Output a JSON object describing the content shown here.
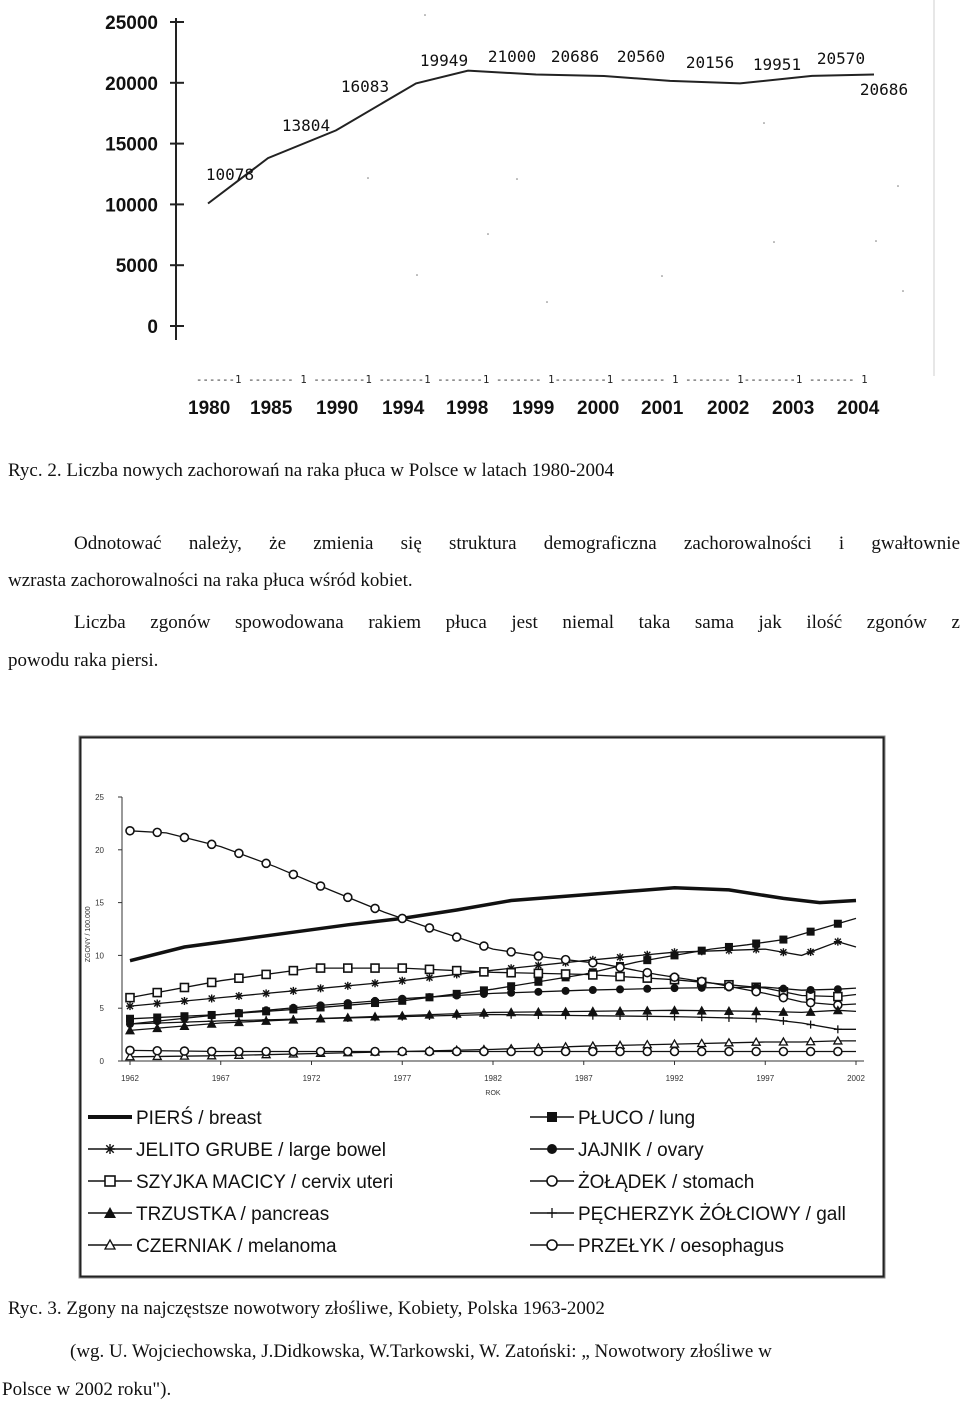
{
  "chart_data": [
    {
      "type": "line",
      "title": "",
      "categories": [
        "1980",
        "1985",
        "1990",
        "1994",
        "1998",
        "1999",
        "2000",
        "2001",
        "2002",
        "2003",
        "2004"
      ],
      "values": [
        10078,
        13804,
        16083,
        19949,
        21000,
        20686,
        20560,
        20156,
        19951,
        20570,
        20686
      ],
      "data_labels": [
        "10078",
        "13804",
        "16083",
        "19949",
        "21000",
        "20686",
        "20560",
        "20156",
        "19951",
        "20570",
        "20686"
      ],
      "yticks": [
        "25000",
        "20000",
        "15000",
        "10000",
        "5000",
        "0"
      ],
      "ylim": [
        0,
        25000
      ],
      "dash_axis_text": "------1 ------- 1 --------1 -------1 -------1 ------- 1--------1 ------- 1 ------- 1--------1 ------- 1"
    },
    {
      "type": "line",
      "xlabel": "ROK",
      "ylabel": "ZGONY / 100.000",
      "ylim": [
        0,
        25
      ],
      "yticks": [
        "25",
        "20",
        "15",
        "10",
        "5",
        "0"
      ],
      "xticks": [
        "1962",
        "1967",
        "1972",
        "1977",
        "1982",
        "1987",
        "1992",
        "1997",
        "2002"
      ],
      "legend": [
        {
          "label": "PIERŚ / breast",
          "marker": "none"
        },
        {
          "label": "JELITO GRUBE / large bowel",
          "marker": "star"
        },
        {
          "label": "SZYJKA MACICY / cervix uteri",
          "marker": "square-open"
        },
        {
          "label": "TRZUSTKA / pancreas",
          "marker": "triangle-filled"
        },
        {
          "label": "CZERNIAK / melanoma",
          "marker": "triangle-open"
        },
        {
          "label": "PŁUCO / lung",
          "marker": "square-filled"
        },
        {
          "label": "JAJNIK / ovary",
          "marker": "circle-filled"
        },
        {
          "label": "ŻOŁĄDEK / stomach",
          "marker": "circle-open"
        },
        {
          "label": "PĘCHERZYK ŻÓŁCIOWY / gall",
          "marker": "plus"
        },
        {
          "label": "PRZEŁYK / oesophagus",
          "marker": "circle-open"
        }
      ],
      "series": [
        {
          "name": "PIERŚ / breast",
          "marker": "none",
          "years": [
            1962,
            1965,
            1968,
            1971,
            1974,
            1977,
            1980,
            1983,
            1986,
            1989,
            1992,
            1995,
            1998,
            2000,
            2002
          ],
          "values": [
            9.5,
            10.8,
            11.5,
            12.2,
            12.9,
            13.5,
            14.3,
            15.2,
            15.6,
            16.0,
            16.4,
            16.2,
            15.4,
            15.0,
            15.2
          ]
        },
        {
          "name": "PŁUCO / lung",
          "marker": "square-filled",
          "years": [
            1962,
            1967,
            1972,
            1977,
            1982,
            1987,
            1990,
            1992,
            1994,
            1996,
            1998,
            2000,
            2002
          ],
          "values": [
            4.0,
            4.4,
            5.0,
            5.7,
            6.8,
            8.2,
            9.4,
            10.0,
            10.6,
            11.0,
            11.5,
            12.5,
            13.5
          ]
        },
        {
          "name": "JELITO GRUBE / large bowel",
          "marker": "star",
          "years": [
            1962,
            1967,
            1972,
            1977,
            1982,
            1987,
            1992,
            1997,
            1999,
            2001,
            2002
          ],
          "values": [
            5.2,
            6.0,
            6.8,
            7.6,
            8.6,
            9.5,
            10.3,
            10.6,
            10.0,
            11.3,
            10.8
          ]
        },
        {
          "name": "SZYJKA MACICY / cervix uteri",
          "marker": "square-open",
          "years": [
            1962,
            1967,
            1972,
            1977,
            1982,
            1987,
            1992,
            1997,
            1999,
            2001,
            2002
          ],
          "values": [
            6.0,
            7.6,
            8.8,
            8.8,
            8.4,
            8.2,
            7.7,
            6.9,
            6.2,
            6.1,
            6.3
          ]
        },
        {
          "name": "JAJNIK / ovary",
          "marker": "circle-filled",
          "years": [
            1962,
            1967,
            1972,
            1977,
            1982,
            1987,
            1992,
            1997,
            1999,
            2001,
            2002
          ],
          "values": [
            3.5,
            4.4,
            5.2,
            5.9,
            6.4,
            6.7,
            6.9,
            7.0,
            6.7,
            6.8,
            6.9
          ]
        },
        {
          "name": "ŻOŁĄDEK / stomach",
          "marker": "circle-open",
          "years": [
            1962,
            1964,
            1967,
            1970,
            1973,
            1976,
            1979,
            1982,
            1985,
            1988,
            1991,
            1994,
            1997,
            1999,
            2001,
            2002
          ],
          "values": [
            21.8,
            21.6,
            20.3,
            18.4,
            16.2,
            14.1,
            12.3,
            10.6,
            9.8,
            9.2,
            8.2,
            7.4,
            6.4,
            5.6,
            5.3,
            5.4
          ]
        },
        {
          "name": "TRZUSTKA / pancreas",
          "marker": "triangle-filled",
          "years": [
            1962,
            1967,
            1972,
            1977,
            1982,
            1987,
            1992,
            1997,
            1999,
            2001,
            2002
          ],
          "values": [
            2.9,
            3.6,
            4.0,
            4.3,
            4.6,
            4.7,
            4.8,
            4.7,
            4.6,
            4.8,
            4.7
          ]
        },
        {
          "name": "PĘCHERZYK ŻÓŁCIOWY / gall",
          "marker": "plus",
          "years": [
            1962,
            1967,
            1972,
            1977,
            1982,
            1987,
            1992,
            1997,
            1999,
            2001,
            2002
          ],
          "values": [
            3.5,
            3.8,
            4.0,
            4.2,
            4.4,
            4.3,
            4.2,
            4.0,
            3.6,
            3.0,
            3.0
          ]
        },
        {
          "name": "CZERNIAK / melanoma",
          "marker": "triangle-open",
          "years": [
            1962,
            1967,
            1972,
            1977,
            1982,
            1987,
            1992,
            1997,
            1999,
            2001,
            2002
          ],
          "values": [
            0.4,
            0.5,
            0.7,
            0.9,
            1.1,
            1.4,
            1.6,
            1.8,
            1.8,
            1.9,
            1.9
          ]
        },
        {
          "name": "PRZEŁYK / oesophagus",
          "marker": "circle-open",
          "years": [
            1962,
            1967,
            1972,
            1977,
            1982,
            1987,
            1992,
            1997,
            1999,
            2001,
            2002
          ],
          "values": [
            1.0,
            0.9,
            0.9,
            0.9,
            0.9,
            0.9,
            0.9,
            0.9,
            0.9,
            0.9,
            0.9
          ]
        }
      ]
    }
  ],
  "text": {
    "caption1": "Ryc. 2. Liczba nowych zachorowań na raka płuca w Polsce w latach 1980-2004",
    "para1_line1": "Odnotować należy, że zmienia się struktura demograficzna zachorowalności i gwałtownie",
    "para1_line2": "wzrasta zachorowalności na raka płuca wśród kobiet.",
    "para2_line1": "Liczba zgonów spowodowana rakiem płuca jest niemal taka sama jak ilość zgonów z",
    "para2_line2": "powodu raka piersi.",
    "caption2": "Ryc. 3. Zgony na najczęstsze nowotwory złośliwe, Kobiety, Polska 1963-2002",
    "source_line1": "(wg. U. Wojciechowska, J.Didkowska, W.Tarkowski, W. Zatoński: „ Nowotwory złośliwe w",
    "source_line2": "Polsce w 2002 roku\")."
  }
}
